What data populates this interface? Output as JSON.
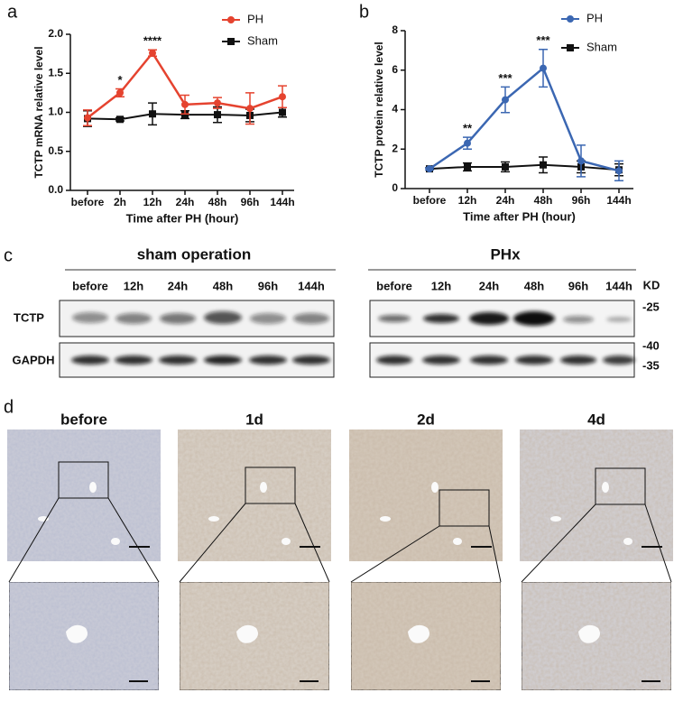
{
  "panel_labels": [
    "a",
    "b",
    "c",
    "d"
  ],
  "chart_data": [
    {
      "type": "line",
      "ylabel": "TCTP mRNA relative level",
      "xlabel": "Time after PH (hour)",
      "categories": [
        "before",
        "2h",
        "12h",
        "24h",
        "48h",
        "96h",
        "144h"
      ],
      "series": [
        {
          "name": "PH",
          "color": "#e5432f",
          "marker": "circle",
          "values": [
            0.93,
            1.25,
            1.76,
            1.1,
            1.12,
            1.05,
            1.2
          ],
          "errors": [
            0.1,
            0.05,
            0.04,
            0.12,
            0.07,
            0.2,
            0.14
          ]
        },
        {
          "name": "Sham",
          "color": "#111111",
          "marker": "square",
          "values": [
            0.92,
            0.91,
            0.98,
            0.97,
            0.97,
            0.96,
            1.0
          ],
          "errors": [
            0.1,
            0.02,
            0.14,
            0.05,
            0.1,
            0.08,
            0.06
          ]
        }
      ],
      "significance": [
        null,
        "*",
        "****",
        null,
        null,
        null,
        null
      ],
      "ylim": [
        0,
        2
      ],
      "yticks": [
        {
          "value": 0,
          "label": "0.0"
        },
        0.5,
        {
          "value": 1,
          "label": "1.0"
        },
        1.5,
        {
          "value": 2,
          "label": "2.0"
        }
      ],
      "legend": "upper right"
    },
    {
      "type": "line",
      "ylabel": "TCTP protein relative level",
      "xlabel": "Time after PH (hour)",
      "categories": [
        "before",
        "12h",
        "24h",
        "48h",
        "96h",
        "144h"
      ],
      "series": [
        {
          "name": "PH",
          "color": "#3b67b2",
          "marker": "circle",
          "values": [
            1.0,
            2.3,
            4.5,
            6.1,
            1.4,
            0.9
          ],
          "errors": [
            0.05,
            0.3,
            0.65,
            0.95,
            0.8,
            0.5
          ]
        },
        {
          "name": "Sham",
          "color": "#111111",
          "marker": "square",
          "values": [
            1.0,
            1.1,
            1.1,
            1.2,
            1.1,
            0.95
          ],
          "errors": [
            0.05,
            0.2,
            0.25,
            0.4,
            0.3,
            0.3
          ]
        }
      ],
      "significance": [
        null,
        "**",
        "***",
        "***",
        null,
        null
      ],
      "ylim": [
        0,
        8
      ],
      "yticks": [
        0,
        2,
        4,
        6,
        8
      ],
      "legend": "upper right"
    }
  ],
  "blot": {
    "groups": [
      {
        "title": "sham operation",
        "lanes": [
          "before",
          "12h",
          "24h",
          "48h",
          "96h",
          "144h"
        ]
      },
      {
        "title": "PHx",
        "lanes": [
          "before",
          "12h",
          "24h",
          "48h",
          "96h",
          "144h"
        ]
      }
    ],
    "rows": [
      "TCTP",
      "GAPDH"
    ],
    "unit": "KD",
    "markers": [
      "-25",
      "-40",
      "-35"
    ]
  },
  "histology": {
    "titles": [
      "before",
      "1d",
      "2d",
      "4d"
    ]
  }
}
